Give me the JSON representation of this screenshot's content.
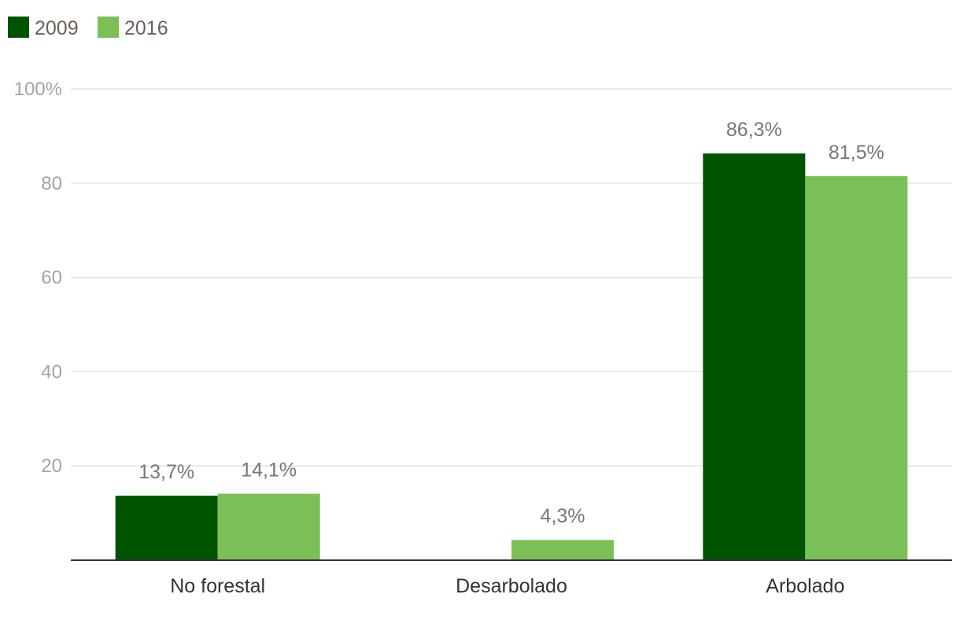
{
  "chart_data": {
    "type": "bar",
    "categories": [
      "No forestal",
      "Desarbolado",
      "Arbolado"
    ],
    "series": [
      {
        "name": "2009",
        "color": "#005400",
        "values": [
          13.7,
          null,
          86.3
        ],
        "labels": [
          "13,7%",
          "",
          "86,3%"
        ]
      },
      {
        "name": "2016",
        "color": "#7ac057",
        "values": [
          14.1,
          4.3,
          81.5
        ],
        "labels": [
          "14,1%",
          "4,3%",
          "81,5%"
        ]
      }
    ],
    "yticks": [
      {
        "value": 20,
        "label": "20"
      },
      {
        "value": 40,
        "label": "40"
      },
      {
        "value": 60,
        "label": "60"
      },
      {
        "value": 80,
        "label": "80"
      },
      {
        "value": 100,
        "label": "100%"
      }
    ],
    "ylim": [
      0,
      100
    ],
    "grid": true,
    "legend": "top-left",
    "title": "",
    "xlabel": "",
    "ylabel": ""
  }
}
